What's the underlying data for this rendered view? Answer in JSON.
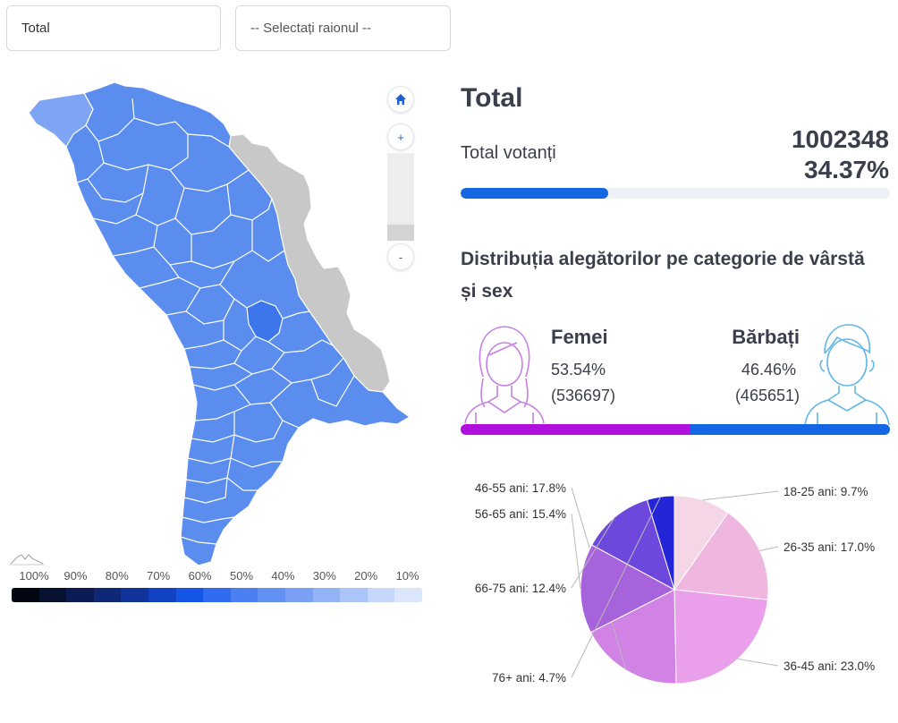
{
  "filters": {
    "scope_value": "Total",
    "district_value": "-- Selectați raionul --"
  },
  "map": {
    "controls": {
      "home_icon": "home-icon",
      "zoom_in": "+",
      "zoom_out": "-"
    },
    "legend": {
      "labels": [
        "100%",
        "90%",
        "80%",
        "70%",
        "60%",
        "50%",
        "40%",
        "30%",
        "20%",
        "10%"
      ],
      "colors": [
        "#030712",
        "#071130",
        "#0b1c54",
        "#0e2877",
        "#11349b",
        "#1242c4",
        "#1656e7",
        "#2f6bef",
        "#4b80f2",
        "#6290f3",
        "#7aa0f5",
        "#93b3f7",
        "#abc5f9",
        "#c6d7fb",
        "#dbe6fd"
      ]
    },
    "colors": {
      "region_fill": "#5b8def",
      "region_light": "#7ea5f3",
      "region_dark": "#3d76ea",
      "outside_fill": "#c8c8c8",
      "border": "#ffffff"
    }
  },
  "summary": {
    "title": "Total",
    "voters_label": "Total votanți",
    "voters_count": "1002348",
    "voters_percent": "34.37%",
    "turnout_fraction": 0.3437,
    "accent_color": "#1467e0"
  },
  "distribution": {
    "heading": "Distribuția alegătorilor pe categorie de vârstă și sex",
    "female": {
      "label": "Femei",
      "percent": "53.54%",
      "count": "(536697)",
      "share": 0.5354,
      "color": "#b10fdc",
      "icon": "woman-avatar-icon"
    },
    "male": {
      "label": "Bărbați",
      "percent": "46.46%",
      "count": "(465651)",
      "share": 0.4646,
      "color": "#1466e4",
      "icon": "man-avatar-icon"
    }
  },
  "chart_data": {
    "type": "pie",
    "categories": [
      "18-25 ani",
      "26-35 ani",
      "36-45 ani",
      "46-55 ani",
      "56-65 ani",
      "66-75 ani",
      "76+ ani"
    ],
    "values": [
      9.7,
      17.0,
      23.0,
      17.8,
      15.4,
      12.4,
      4.7
    ],
    "labels": [
      "18-25 ani: 9.7%",
      "26-35 ani: 17.0%",
      "36-45 ani: 23.0%",
      "46-55 ani: 17.8%",
      "56-65 ani: 15.4%",
      "66-75 ani: 12.4%",
      "76+ ani: 4.7%"
    ],
    "colors": [
      "#f5d6e6",
      "#efb7e0",
      "#e99fe9",
      "#d083e4",
      "#a763db",
      "#6e47dc",
      "#2525d8"
    ],
    "label_side": [
      "right",
      "right",
      "right",
      "left",
      "left",
      "left",
      "left"
    ]
  }
}
